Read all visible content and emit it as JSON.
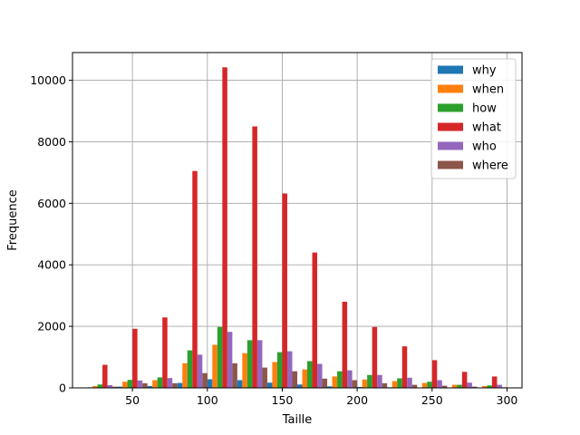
{
  "chart_data": {
    "type": "bar",
    "xlabel": "Taille",
    "ylabel": "Frequence",
    "xlim": [
      10,
      310
    ],
    "ylim": [
      0,
      10900
    ],
    "xticks": [
      50,
      100,
      150,
      200,
      250,
      300
    ],
    "yticks": [
      0,
      2000,
      4000,
      6000,
      8000,
      10000
    ],
    "grid": true,
    "legend_position": "top-right",
    "bin_centers": [
      30,
      50,
      70,
      90,
      110,
      130,
      150,
      170,
      190,
      210,
      230,
      250,
      270,
      290
    ],
    "bin_width": 20,
    "series": [
      {
        "name": "why",
        "color": "#1f77b4",
        "values": [
          20,
          40,
          60,
          160,
          280,
          250,
          170,
          110,
          50,
          30,
          20,
          10,
          10,
          10
        ]
      },
      {
        "name": "when",
        "color": "#ff7f0e",
        "values": [
          60,
          200,
          250,
          800,
          1400,
          1130,
          840,
          600,
          370,
          270,
          220,
          160,
          100,
          60
        ]
      },
      {
        "name": "how",
        "color": "#2ca02c",
        "values": [
          110,
          260,
          340,
          1220,
          1980,
          1550,
          1160,
          870,
          540,
          420,
          310,
          200,
          100,
          80
        ]
      },
      {
        "name": "what",
        "color": "#d62728",
        "values": [
          750,
          1920,
          2290,
          7050,
          10420,
          8500,
          6320,
          4400,
          2800,
          1980,
          1350,
          900,
          520,
          370
        ]
      },
      {
        "name": "who",
        "color": "#9467bd",
        "values": [
          90,
          240,
          320,
          1080,
          1820,
          1550,
          1190,
          780,
          570,
          420,
          330,
          250,
          170,
          100
        ]
      },
      {
        "name": "where",
        "color": "#8c564b",
        "values": [
          40,
          150,
          150,
          480,
          800,
          660,
          540,
          300,
          250,
          150,
          100,
          70,
          40,
          20
        ]
      }
    ]
  }
}
